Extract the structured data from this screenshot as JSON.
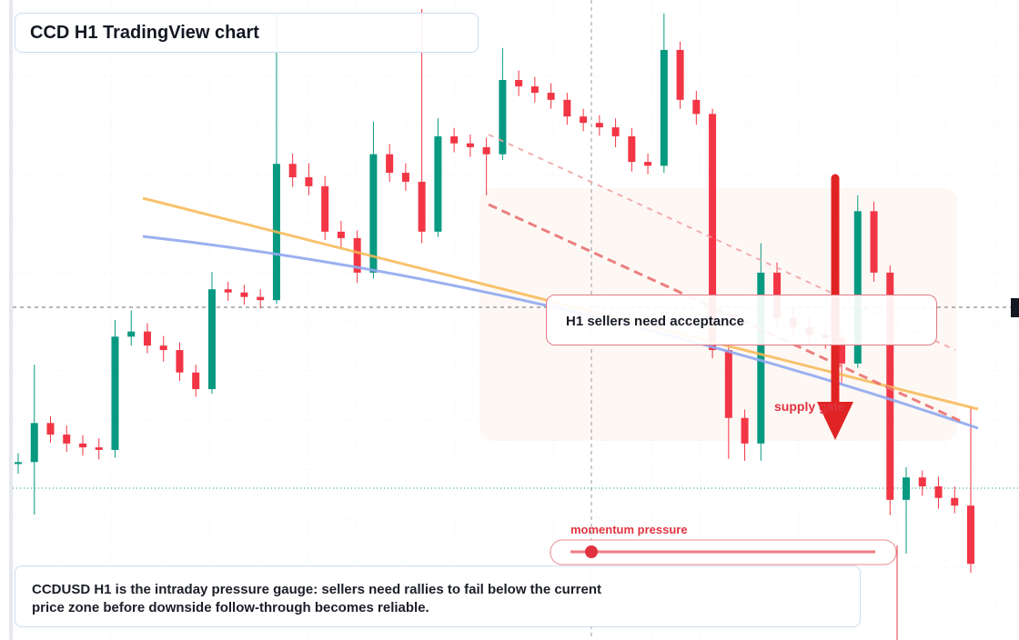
{
  "chart_data": {
    "type": "candlestick",
    "title": "CCD H1 TradingView chart",
    "annotations": [
      "H1 sellers need acceptance",
      "supply gate",
      "momentum pressure",
      "CCDUSD H1 is the intraday pressure gauge: sellers need rallies to fail below the current price zone before downside follow-through becomes reliable."
    ],
    "up_color": "#089981",
    "down_color": "#f23645",
    "ylim": [
      0,
      100
    ],
    "open": [
      27.5,
      27.8,
      33.9,
      32.1,
      30.7,
      30.1,
      29.7,
      47.4,
      48.2,
      46.0,
      45.3,
      41.8,
      39.2,
      54.8,
      54.3,
      53.6,
      53.1,
      74.4,
      72.3,
      70.9,
      63.8,
      62.8,
      57.4,
      75.9,
      73.0,
      71.6,
      63.8,
      78.7,
      77.6,
      77.0,
      75.9,
      87.5,
      86.5,
      85.5,
      84.4,
      81.8,
      80.8,
      80.1,
      78.7,
      74.7,
      74.1,
      92.2,
      84.4,
      82.2,
      45.3,
      34.7,
      30.7,
      57.4,
      50.3,
      48.9,
      47.7,
      47.2,
      43.2,
      67.0,
      57.4,
      21.9,
      25.4,
      24.0,
      22.2,
      21.0
    ],
    "high": [
      29.2,
      43.0,
      35.0,
      33.5,
      32.0,
      31.5,
      50.0,
      51.5,
      49.5,
      47.5,
      46.5,
      43.0,
      57.5,
      56.0,
      55.5,
      54.8,
      97.9,
      76.0,
      74.5,
      72.5,
      65.5,
      64.0,
      81.0,
      77.5,
      74.5,
      98.6,
      81.5,
      80.0,
      79.0,
      78.5,
      92.5,
      89.0,
      88.0,
      87.0,
      85.5,
      83.0,
      82.0,
      81.5,
      80.0,
      76.0,
      97.9,
      93.5,
      85.8,
      83.0,
      46.5,
      36.0,
      62.0,
      59.0,
      52.0,
      50.5,
      49.0,
      48.5,
      69.5,
      68.5,
      58.5,
      27.0,
      26.5,
      25.5,
      24.0,
      36.5
    ],
    "low": [
      26.0,
      19.6,
      30.8,
      29.4,
      28.8,
      28.2,
      28.5,
      46.0,
      44.8,
      43.5,
      40.5,
      38.0,
      38.5,
      53.0,
      52.4,
      51.8,
      52.5,
      70.8,
      69.5,
      62.5,
      61.2,
      55.8,
      56.5,
      71.6,
      70.2,
      62.0,
      63.0,
      76.2,
      75.5,
      69.5,
      75.0,
      85.0,
      84.0,
      83.0,
      80.5,
      79.5,
      78.8,
      77.0,
      73.2,
      72.8,
      73.0,
      83.0,
      80.5,
      44.0,
      28.3,
      28.0,
      28.0,
      49.0,
      47.5,
      46.0,
      45.5,
      40.0,
      42.5,
      56.0,
      19.5,
      13.5,
      22.5,
      20.5,
      19.8,
      10.5
    ],
    "close": [
      27.8,
      33.9,
      32.1,
      30.7,
      30.1,
      29.7,
      47.4,
      48.2,
      46.0,
      45.3,
      41.8,
      39.2,
      54.8,
      54.3,
      53.6,
      53.1,
      74.4,
      72.3,
      70.9,
      63.8,
      62.8,
      57.4,
      75.9,
      73.0,
      71.6,
      63.8,
      78.7,
      77.6,
      77.0,
      75.9,
      87.5,
      86.5,
      85.5,
      84.4,
      81.8,
      80.8,
      80.1,
      78.7,
      74.7,
      74.1,
      92.2,
      84.4,
      82.2,
      45.3,
      34.7,
      30.7,
      57.4,
      50.3,
      48.9,
      47.7,
      47.2,
      43.2,
      67.0,
      57.4,
      21.9,
      25.4,
      24.0,
      22.2,
      21.0,
      11.9
    ]
  }
}
